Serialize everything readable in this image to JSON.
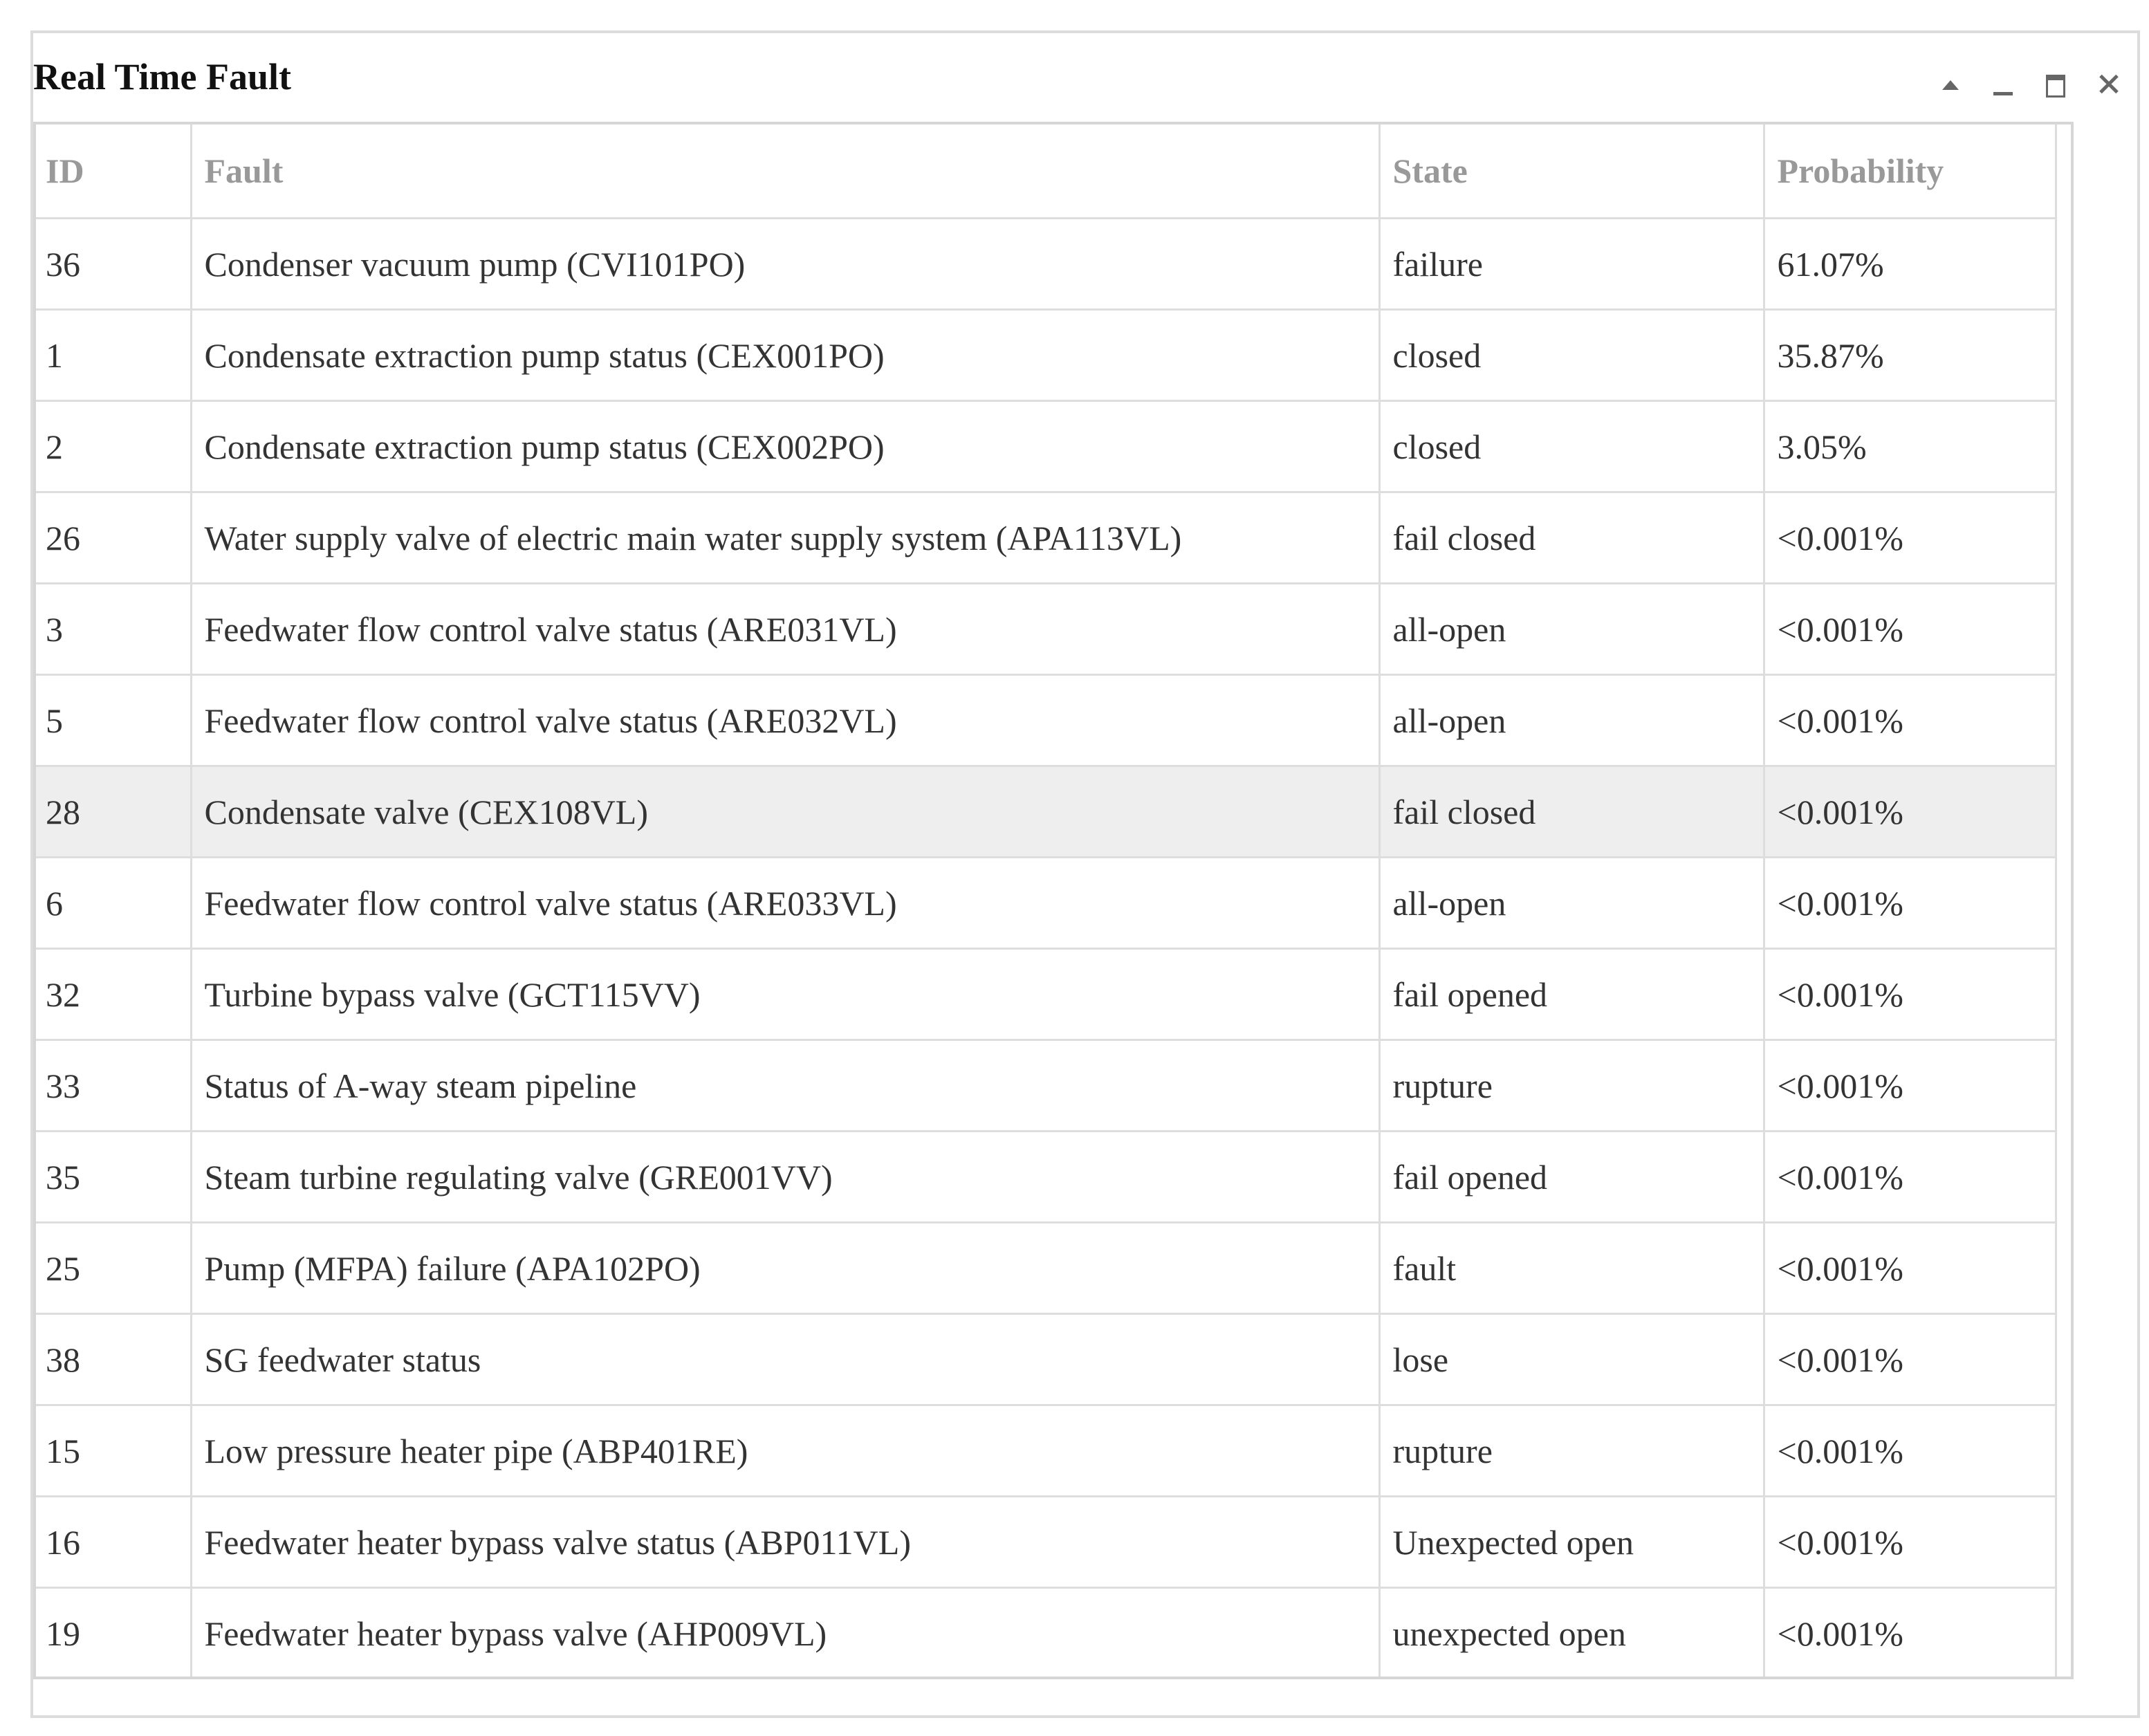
{
  "window": {
    "title": "Real Time Fault"
  },
  "table": {
    "columns": [
      "ID",
      "Fault",
      "State",
      "Probability"
    ],
    "rows": [
      {
        "id": "36",
        "fault": "Condenser vacuum pump (CVI101PO)",
        "state": "failure",
        "probability": "61.07%"
      },
      {
        "id": "1",
        "fault": "Condensate extraction pump status (CEX001PO)",
        "state": "closed",
        "probability": "35.87%"
      },
      {
        "id": "2",
        "fault": "Condensate extraction pump status (CEX002PO)",
        "state": "closed",
        "probability": "3.05%"
      },
      {
        "id": "26",
        "fault": "Water supply valve of electric main water supply system (APA113VL)",
        "state": "fail closed",
        "probability": "<0.001%"
      },
      {
        "id": "3",
        "fault": "Feedwater flow control valve status (ARE031VL)",
        "state": "all-open",
        "probability": "<0.001%"
      },
      {
        "id": "5",
        "fault": "Feedwater flow control valve status (ARE032VL)",
        "state": "all-open",
        "probability": "<0.001%"
      },
      {
        "id": "28",
        "fault": "Condensate valve (CEX108VL)",
        "state": "fail closed",
        "probability": "<0.001%"
      },
      {
        "id": "6",
        "fault": "Feedwater flow control valve status (ARE033VL)",
        "state": "all-open",
        "probability": "<0.001%"
      },
      {
        "id": "32",
        "fault": "Turbine bypass valve (GCT115VV)",
        "state": "fail opened",
        "probability": "<0.001%"
      },
      {
        "id": "33",
        "fault": "Status of A-way steam pipeline",
        "state": "rupture",
        "probability": "<0.001%"
      },
      {
        "id": "35",
        "fault": "Steam turbine regulating valve (GRE001VV)",
        "state": "fail opened",
        "probability": "<0.001%"
      },
      {
        "id": "25",
        "fault": "Pump (MFPA) failure (APA102PO)",
        "state": "fault",
        "probability": "<0.001%"
      },
      {
        "id": "38",
        "fault": "SG feedwater status",
        "state": "lose",
        "probability": "<0.001%"
      },
      {
        "id": "15",
        "fault": "Low pressure heater pipe (ABP401RE)",
        "state": "rupture",
        "probability": "<0.001%"
      },
      {
        "id": "16",
        "fault": "Feedwater heater bypass valve status (ABP011VL)",
        "state": "Unexpected open",
        "probability": "<0.001%"
      },
      {
        "id": "19",
        "fault": "Feedwater heater bypass valve (AHP009VL)",
        "state": "unexpected open",
        "probability": "<0.001%"
      }
    ]
  },
  "icons": {
    "collapse": "collapse-icon",
    "minimize": "minimize-icon",
    "maximize": "maximize-icon",
    "close": "close-icon"
  },
  "colors": {
    "border": "#dcdcdc",
    "header_text": "#999999",
    "highlight_row": "#eeeeee"
  }
}
